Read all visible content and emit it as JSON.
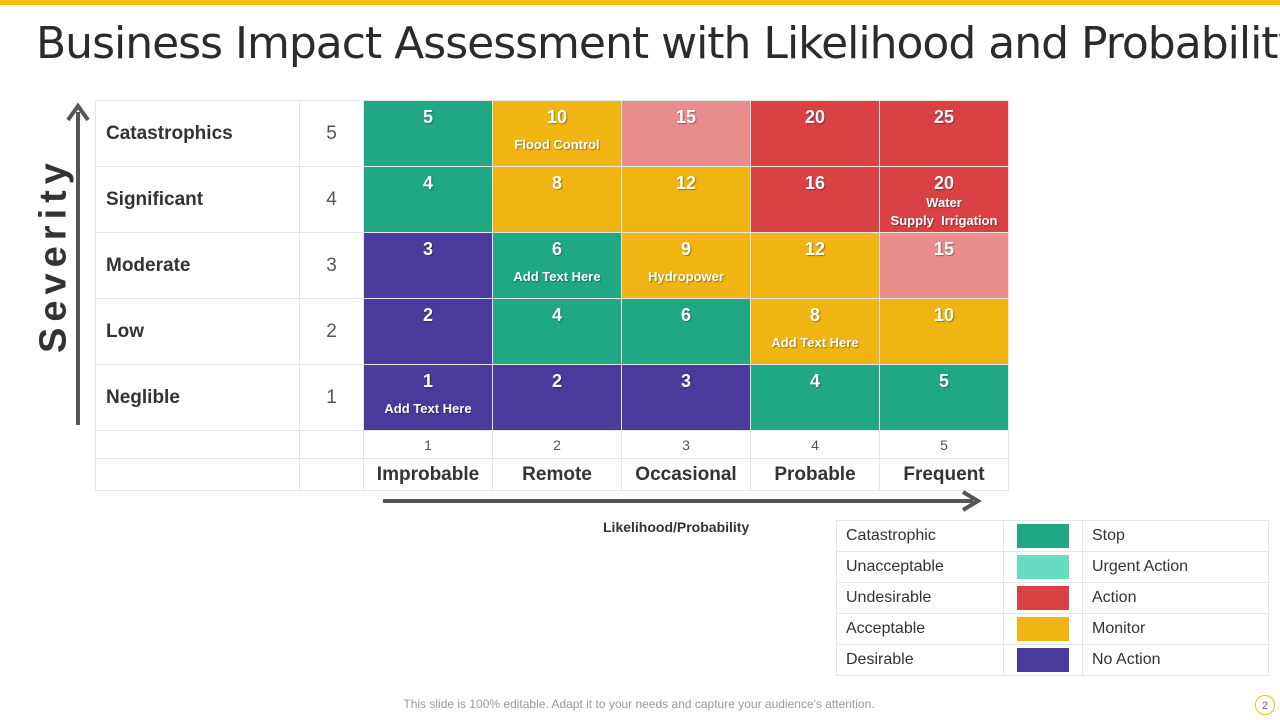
{
  "slide": {
    "title": "Business Impact Assessment with Likelihood and Probability",
    "footer": "This slide is 100% editable. Adapt it to your needs and capture your audience's attention.",
    "page_number": "2"
  },
  "severity": {
    "axis_label": "Severity",
    "rows": [
      {
        "name": "Catastrophics",
        "value": "5"
      },
      {
        "name": "Significant",
        "value": "4"
      },
      {
        "name": "Moderate",
        "value": "3"
      },
      {
        "name": "Low",
        "value": "2"
      },
      {
        "name": "Neglible",
        "value": "1"
      }
    ]
  },
  "likelihood": {
    "axis_label": "Likelihood/Probability",
    "columns": [
      {
        "name": "Improbable",
        "value": "1"
      },
      {
        "name": "Remote",
        "value": "2"
      },
      {
        "name": "Occasional",
        "value": "3"
      },
      {
        "name": "Probable",
        "value": "4"
      },
      {
        "name": "Frequent",
        "value": "5"
      }
    ]
  },
  "matrix": [
    [
      {
        "score": "5",
        "text": ""
      },
      {
        "score": "10",
        "text": "Flood Control"
      },
      {
        "score": "15",
        "text": ""
      },
      {
        "score": "20",
        "text": ""
      },
      {
        "score": "25",
        "text": ""
      }
    ],
    [
      {
        "score": "4",
        "text": ""
      },
      {
        "score": "8",
        "text": ""
      },
      {
        "score": "12",
        "text": ""
      },
      {
        "score": "16",
        "text": ""
      },
      {
        "score": "20",
        "text": "Water Supply  Irrigation"
      }
    ],
    [
      {
        "score": "3",
        "text": ""
      },
      {
        "score": "6",
        "text": "Add Text Here"
      },
      {
        "score": "9",
        "text": "Hydropower"
      },
      {
        "score": "12",
        "text": ""
      },
      {
        "score": "15",
        "text": ""
      }
    ],
    [
      {
        "score": "2",
        "text": ""
      },
      {
        "score": "4",
        "text": ""
      },
      {
        "score": "6",
        "text": ""
      },
      {
        "score": "8",
        "text": "Add Text Here"
      },
      {
        "score": "10",
        "text": ""
      }
    ],
    [
      {
        "score": "1",
        "text": "Add Text Here"
      },
      {
        "score": "2",
        "text": ""
      },
      {
        "score": "3",
        "text": ""
      },
      {
        "score": "4",
        "text": ""
      },
      {
        "score": "5",
        "text": ""
      }
    ]
  ],
  "colors": {
    "accent": "#f2bd13",
    "green": "#20a884",
    "teal": "#67dcc1",
    "red": "#da4144",
    "pink": "#e98d8c",
    "yellow": "#f0b512",
    "purple": "#4a3a9b"
  },
  "legend": [
    {
      "category": "Catastrophic",
      "action": "Stop",
      "color": "#20a884"
    },
    {
      "category": "Unacceptable",
      "action": "Urgent Action",
      "color": "#67dcc1"
    },
    {
      "category": "Undesirable",
      "action": "Action",
      "color": "#da4144"
    },
    {
      "category": "Acceptable",
      "action": "Monitor",
      "color": "#f0b512"
    },
    {
      "category": "Desirable",
      "action": "No Action",
      "color": "#4a3a9b"
    }
  ]
}
